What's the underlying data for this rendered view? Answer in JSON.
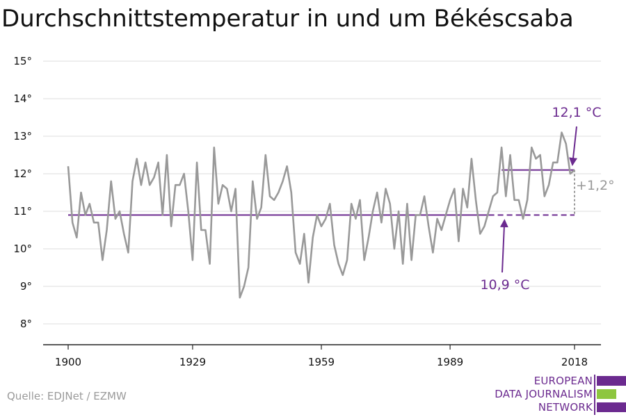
{
  "title": "Durchschnittstemperatur in und um Békéscsaba",
  "source": "Quelle: EDJNet / EZMW",
  "logo": {
    "lines": [
      "EUROPEAN",
      "DATA JOURNALISM",
      "NETWORK"
    ],
    "colors": {
      "primary": "#6b2a8f",
      "accent": "#8dc63f"
    }
  },
  "colors": {
    "series": "#999999",
    "reference": "#6b2a8f",
    "delta": "#999999",
    "grid": "#dddddd",
    "axis": "#222222",
    "text": "#111111"
  },
  "chart_data": {
    "type": "line",
    "title": "Durchschnittstemperatur in und um Békéscsaba",
    "xlabel": "",
    "ylabel": "",
    "xlim": [
      1900,
      2018
    ],
    "ylim": [
      8,
      15
    ],
    "grid": true,
    "xticks": [
      1900,
      1929,
      1959,
      1989,
      2018
    ],
    "yticks": [
      8,
      9,
      10,
      11,
      12,
      13,
      14,
      15
    ],
    "ytick_labels": [
      "8°",
      "9°",
      "10°",
      "11°",
      "12°",
      "13°",
      "14°",
      "15°"
    ],
    "x": [
      1900,
      1901,
      1902,
      1903,
      1904,
      1905,
      1906,
      1907,
      1908,
      1909,
      1910,
      1911,
      1912,
      1913,
      1914,
      1915,
      1916,
      1917,
      1918,
      1919,
      1920,
      1921,
      1922,
      1923,
      1924,
      1925,
      1926,
      1927,
      1928,
      1929,
      1930,
      1931,
      1932,
      1933,
      1934,
      1935,
      1936,
      1937,
      1938,
      1939,
      1940,
      1941,
      1942,
      1943,
      1944,
      1945,
      1946,
      1947,
      1948,
      1949,
      1950,
      1951,
      1952,
      1953,
      1954,
      1955,
      1956,
      1957,
      1958,
      1959,
      1960,
      1961,
      1962,
      1963,
      1964,
      1965,
      1966,
      1967,
      1968,
      1969,
      1970,
      1971,
      1972,
      1973,
      1974,
      1975,
      1976,
      1977,
      1978,
      1979,
      1980,
      1981,
      1982,
      1983,
      1984,
      1985,
      1986,
      1987,
      1988,
      1989,
      1990,
      1991,
      1992,
      1993,
      1994,
      1995,
      1996,
      1997,
      1998,
      1999,
      2000,
      2001,
      2002,
      2003,
      2004,
      2005,
      2006,
      2007,
      2008,
      2009,
      2010,
      2011,
      2012,
      2013,
      2014,
      2015,
      2016,
      2017,
      2018
    ],
    "series": [
      {
        "values": [
          12.2,
          10.7,
          10.3,
          11.5,
          10.9,
          11.2,
          10.7,
          10.7,
          9.7,
          10.5,
          11.8,
          10.8,
          11.0,
          10.4,
          9.9,
          11.8,
          12.4,
          11.7,
          12.3,
          11.7,
          11.9,
          12.3,
          10.9,
          12.5,
          10.6,
          11.7,
          11.7,
          12.0,
          11.0,
          9.7,
          12.3,
          10.5,
          10.5,
          9.6,
          12.7,
          11.2,
          11.7,
          11.6,
          11.0,
          11.6,
          8.7,
          9.0,
          9.5,
          11.8,
          10.8,
          11.1,
          12.5,
          11.4,
          11.3,
          11.5,
          11.8,
          12.2,
          11.5,
          9.9,
          9.6,
          10.4,
          9.1,
          10.3,
          10.9,
          10.6,
          10.8,
          11.2,
          10.1,
          9.6,
          9.3,
          9.7,
          11.2,
          10.8,
          11.3,
          9.7,
          10.3,
          11.0,
          11.5,
          10.7,
          11.6,
          11.2,
          10.0,
          11.0,
          9.6,
          11.2,
          9.7,
          10.9,
          10.9,
          11.4,
          10.6,
          9.9,
          10.8,
          10.5,
          10.9,
          11.3,
          11.6,
          10.2,
          11.6,
          11.1,
          12.4,
          11.3,
          10.4,
          10.6,
          11.0,
          11.4,
          11.5,
          12.7,
          11.4,
          12.5,
          11.3,
          11.3,
          10.8,
          11.3,
          12.7,
          12.4,
          12.5,
          11.4,
          11.7,
          12.3,
          12.3,
          13.1,
          12.8,
          12.0,
          12.1
        ]
      }
    ],
    "reference_lines": [
      {
        "label": "10,9 °C",
        "value": 10.9,
        "x_start": 1900,
        "x_end": 2018
      },
      {
        "label": "12,1 °C",
        "value": 12.1,
        "x_start": 2001,
        "x_end": 2018
      }
    ],
    "annotations": [
      {
        "text": "12,1 °C",
        "points_to": [
          2018,
          12.1
        ]
      },
      {
        "text": "10,9 °C",
        "points_to": [
          2002,
          10.9
        ]
      },
      {
        "text": "+1,2°",
        "between": [
          10.9,
          12.1
        ],
        "at_x": 2018
      }
    ]
  }
}
